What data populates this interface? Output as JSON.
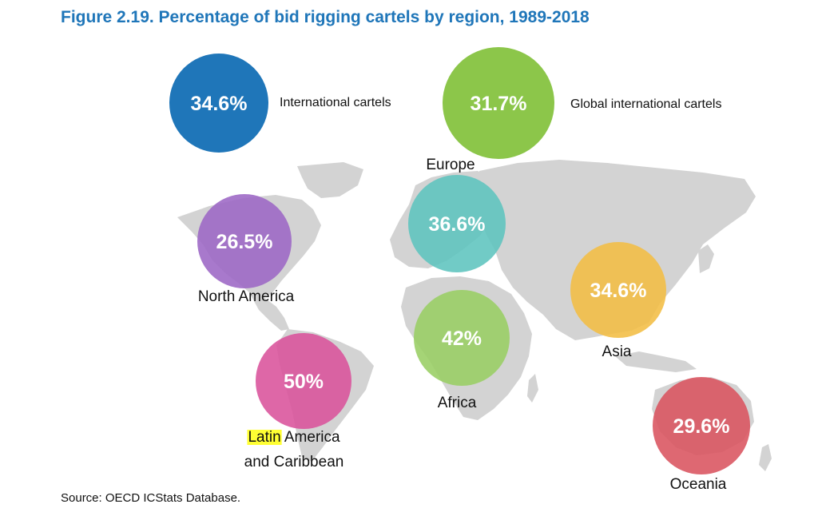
{
  "title": "Figure 2.19. Percentage of bid rigging cartels by region, 1989-2018",
  "source": "Source: OECD ICStats Database.",
  "colors": {
    "title": "#1f76b9",
    "map": "#d3d3d3",
    "international": "#1f76b9",
    "global": "#8cc64a",
    "europe": "#5dc4be",
    "north_america": "#9c67c5",
    "africa": "#98ce63",
    "asia": "#f2bd43",
    "latin_america": "#d9529b",
    "oceania": "#d9535f"
  },
  "chart_data": {
    "type": "bubble-map",
    "title": "Figure 2.19. Percentage of bid rigging cartels by region, 1989-2018",
    "unit": "%",
    "bubbles": [
      {
        "key": "international",
        "label": "International cartels",
        "value": 34.6,
        "display": "34.6%"
      },
      {
        "key": "global",
        "label": "Global international cartels",
        "value": 31.7,
        "display": "31.7%"
      },
      {
        "key": "europe",
        "label": "Europe",
        "value": 36.6,
        "display": "36.6%"
      },
      {
        "key": "north_america",
        "label": "North America",
        "value": 26.5,
        "display": "26.5%"
      },
      {
        "key": "africa",
        "label": "Africa",
        "value": 42,
        "display": "42%"
      },
      {
        "key": "asia",
        "label": "Asia",
        "value": 34.6,
        "display": "34.6%"
      },
      {
        "key": "latin_america",
        "label_highlight": "Latin",
        "label": " America",
        "label_line2": "and Caribbean",
        "value": 50,
        "display": "50%"
      },
      {
        "key": "oceania",
        "label": "Oceania",
        "value": 29.6,
        "display": "29.6%"
      }
    ]
  }
}
